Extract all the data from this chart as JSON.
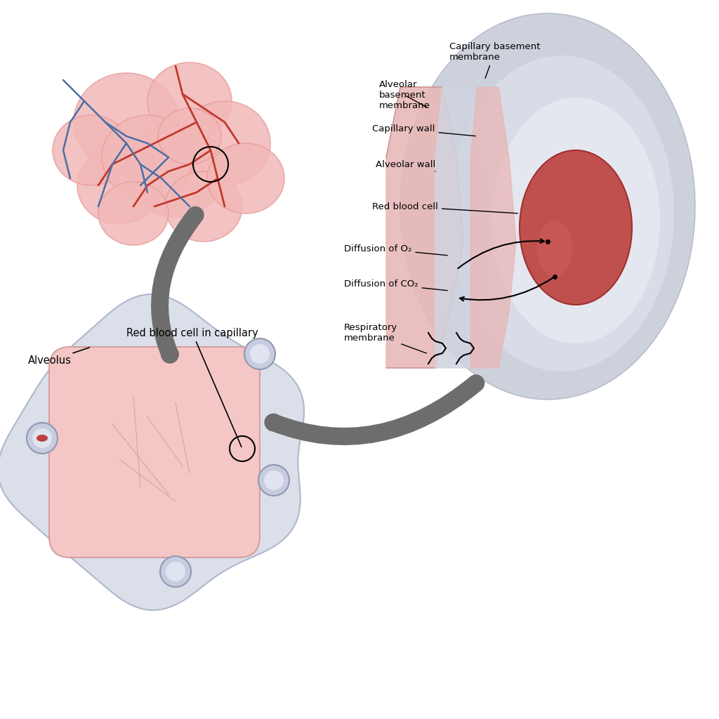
{
  "bg_color": "#ffffff",
  "alveoli_cluster_color": "#f2b8b8",
  "alveoli_cluster_border": "#e8a0a0",
  "artery_color": "#c0392b",
  "vein_color": "#4a6fa5",
  "capillary_bg": "#e8d0d0",
  "alveolus_fill": "#f5c6c6",
  "alveolus_border": "#d4a0a0",
  "connective_tissue": "#d8dce8",
  "connective_border": "#b0b8cc",
  "rbc_fill": "#c0504d",
  "rbc_border": "#a03030",
  "arrow_color": "#6d6d6d",
  "label_fontsize": 10,
  "title_fontsize": 12,
  "capillary_wall_color": "#e8b0b0",
  "capillary_wall_outer": "#d49090",
  "interstitial_color": "#e0e4f0",
  "alveolar_air_color": "#f5e8e8",
  "labels_detail": [
    "Alveolar\nbasement\nmembrane",
    "Capillary basement\nmembrane",
    "Capillary wall",
    "Alveolar wall",
    "Red blood cell",
    "Diffusion of O₂",
    "Diffusion of CO₂",
    "Respiratory\nmembrane"
  ],
  "label_alveolus": "Alveolus",
  "label_rbc_cap": "Red blood cell in capillary"
}
